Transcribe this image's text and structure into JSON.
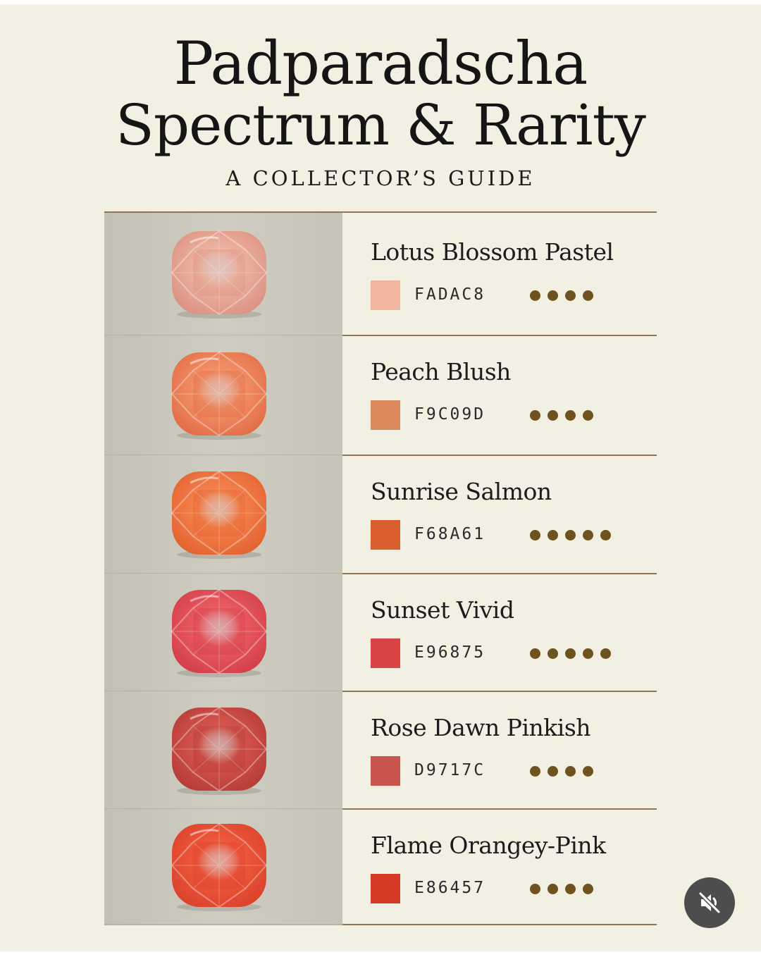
{
  "header": {
    "title_line1": "Padparadscha",
    "title_line2": "Spectrum & Rarity",
    "subtitle": "A COLLECTOR’S GUIDE"
  },
  "rows": [
    {
      "name": "Lotus Blossom Pastel",
      "hex": "FADAC8",
      "swatch_color": "#f2b5a0",
      "gem_color": "#efb4a2",
      "gem_dark": "#d98e80",
      "rarity": 4
    },
    {
      "name": "Peach Blush",
      "hex": "F9C09D",
      "swatch_color": "#dd8a5e",
      "gem_color": "#f39368",
      "gem_dark": "#e06a44",
      "rarity": 4
    },
    {
      "name": "Sunrise Salmon",
      "hex": "F68A61",
      "swatch_color": "#d9602e",
      "gem_color": "#f5834e",
      "gem_dark": "#e0602e",
      "rarity": 5
    },
    {
      "name": "Sunset Vivid",
      "hex": "E96875",
      "swatch_color": "#d94444",
      "gem_color": "#ea5d62",
      "gem_dark": "#d13c48",
      "rarity": 5
    },
    {
      "name": "Rose Dawn Pinkish",
      "hex": "D9717C",
      "swatch_color": "#c9554c",
      "gem_color": "#d6564e",
      "gem_dark": "#b33a34",
      "rarity": 4
    },
    {
      "name": "Flame Orangey-Pink",
      "hex": "E86457",
      "swatch_color": "#d53a27",
      "gem_color": "#ee5a3c",
      "gem_dark": "#d9402a",
      "rarity": 4
    }
  ],
  "controls": {
    "mute_icon": "speaker-muted-icon"
  }
}
